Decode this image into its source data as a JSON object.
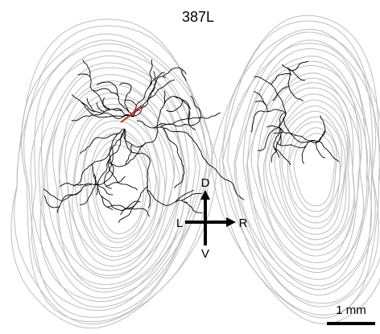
{
  "title": "387L",
  "compass": {
    "dorsal": "D",
    "ventral": "V",
    "left": "L",
    "right": "R"
  },
  "scale_bar": {
    "label": "1 mm"
  }
}
